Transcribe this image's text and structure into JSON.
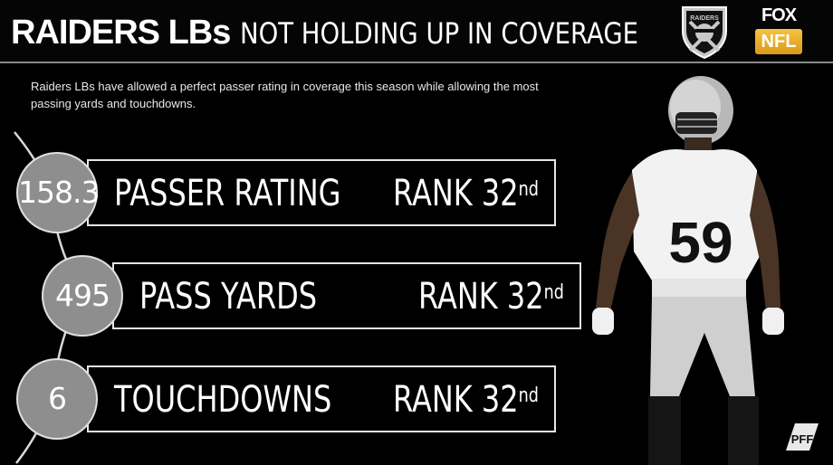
{
  "header": {
    "title_bold": "RAIDERS LBs",
    "title_light": "NOT HOLDING UP IN COVERAGE",
    "raiders_logo_text": "RAIDERS",
    "fox_text": "FOX",
    "nfl_text": "NFL"
  },
  "subtitle": "Raiders LBs have allowed a perfect passer rating in coverage this season while allowing the most passing yards and touchdowns.",
  "stats": [
    {
      "value": "158.3",
      "label": "PASSER RATING",
      "rank": "RANK 32",
      "suffix": "nd"
    },
    {
      "value": "495",
      "label": "PASS YARDS",
      "rank": "RANK 32",
      "suffix": "nd"
    },
    {
      "value": "6",
      "label": "TOUCHDOWNS",
      "rank": "RANK 32",
      "suffix": "nd"
    }
  ],
  "player": {
    "jersey_number": "59"
  },
  "pff_logo_text": "PFF",
  "colors": {
    "background": "#000000",
    "circle": "#8e8e8e",
    "border": "#e6e6e6",
    "nfl_gold": "#f0b429"
  }
}
